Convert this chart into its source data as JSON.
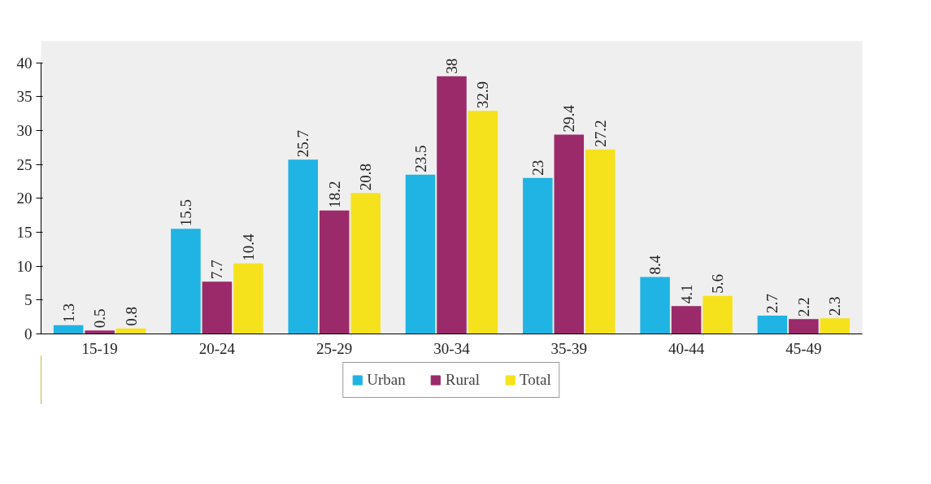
{
  "chart_data": {
    "type": "bar",
    "categories": [
      "15-19",
      "20-24",
      "25-29",
      "30-34",
      "35-39",
      "40-44",
      "45-49"
    ],
    "series": [
      {
        "name": "Urban",
        "color": "#1fb4e4",
        "values": [
          1.3,
          15.5,
          25.7,
          23.5,
          23,
          8.4,
          2.7
        ]
      },
      {
        "name": "Rural",
        "color": "#9b2a6b",
        "values": [
          0.5,
          7.7,
          18.2,
          38,
          29.4,
          4.1,
          2.2
        ]
      },
      {
        "name": "Total",
        "color": "#f6e21c",
        "values": [
          0.8,
          10.4,
          20.8,
          32.9,
          27.2,
          5.6,
          2.3
        ]
      }
    ],
    "ylim": [
      0,
      40
    ],
    "yticks": [
      0,
      5,
      10,
      15,
      20,
      25,
      30,
      35,
      40
    ],
    "grid": false,
    "legend": "bottom",
    "data_labels": true
  }
}
